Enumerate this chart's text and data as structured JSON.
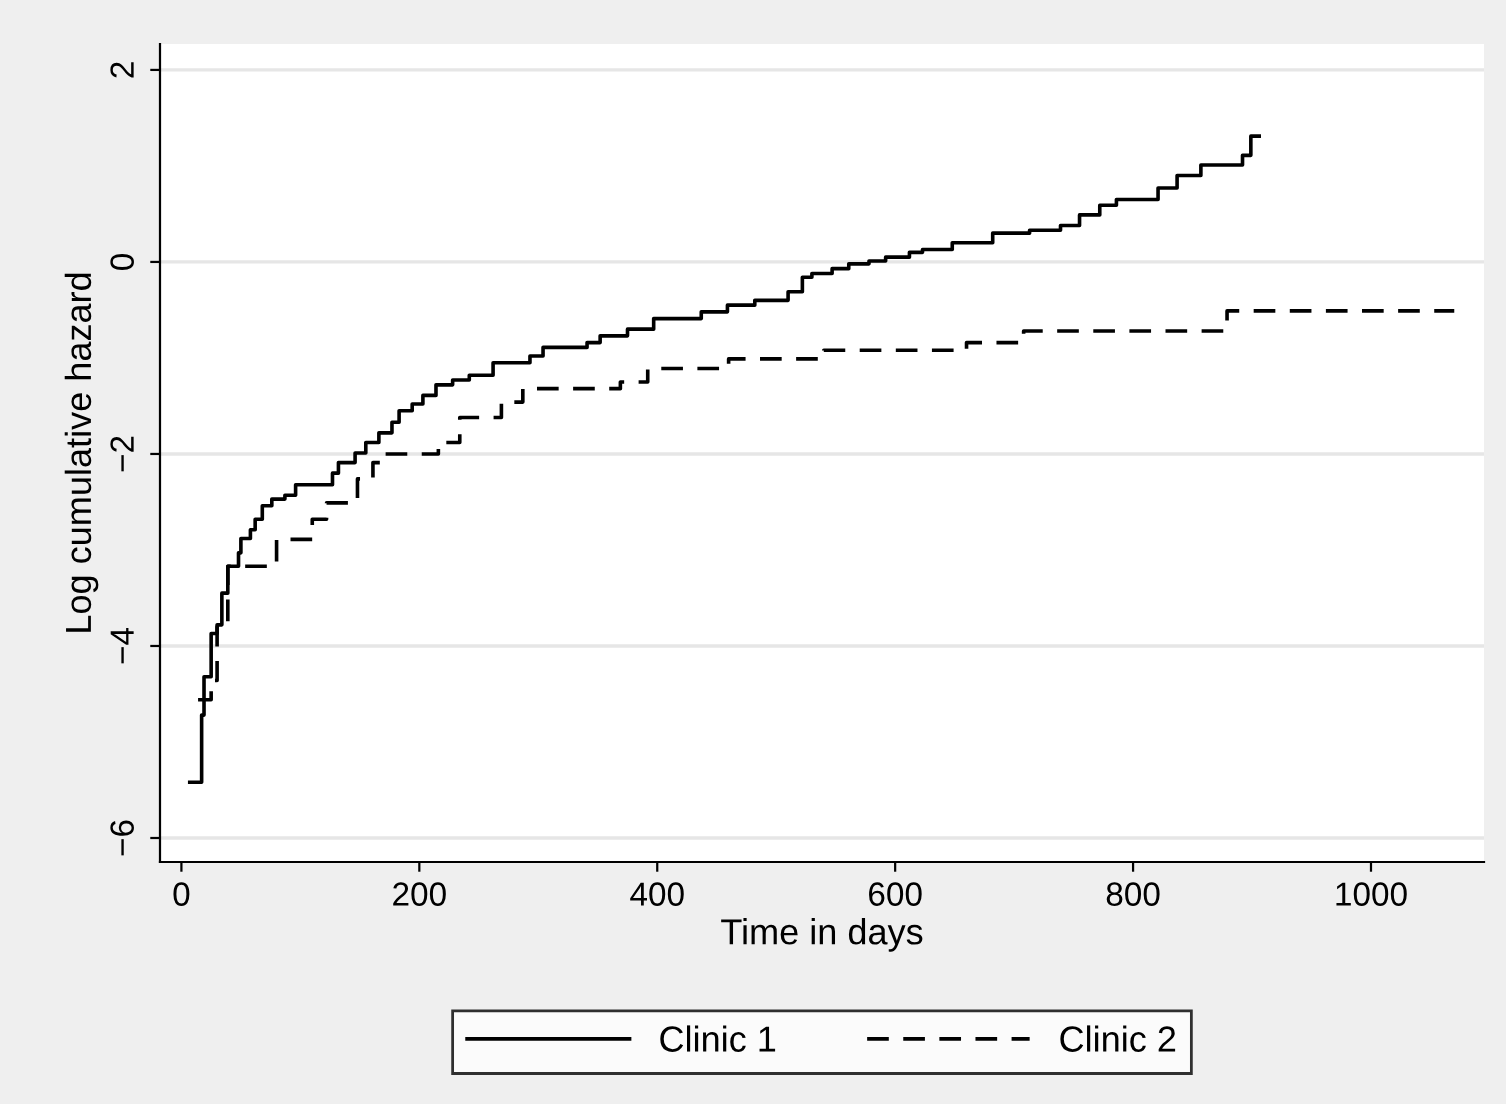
{
  "chart_data": {
    "type": "step",
    "xlabel": "Time in days",
    "ylabel": "Log cumulative hazard",
    "xlim": [
      -18,
      1095
    ],
    "ylim": [
      -6.25,
      2.27
    ],
    "xticks": [
      0,
      200,
      400,
      600,
      800,
      1000
    ],
    "yticks": [
      {
        "value": -6,
        "label": "−6"
      },
      {
        "value": -4,
        "label": "−4"
      },
      {
        "value": -2,
        "label": "−2"
      },
      0,
      2
    ],
    "grid": "y",
    "legend": "bottom",
    "series": [
      {
        "name": "Clinic 1",
        "color": "#000000",
        "line_style": "solid",
        "x": [
          7,
          17,
          19,
          25,
          30,
          34,
          39,
          48,
          50,
          58,
          62,
          68,
          76,
          87,
          96,
          127,
          132,
          146,
          155,
          166,
          177,
          183,
          194,
          203,
          214,
          228,
          242,
          262,
          293,
          304,
          341,
          352,
          375,
          397,
          437,
          459,
          482,
          510,
          522,
          530,
          547,
          561,
          578,
          592,
          612,
          623,
          648,
          682,
          713,
          739,
          755,
          772,
          786,
          821,
          837,
          857,
          892,
          899,
          906
        ],
        "values": [
          -5.42,
          -4.72,
          -4.32,
          -3.87,
          -3.78,
          -3.45,
          -3.17,
          -3.03,
          -2.88,
          -2.79,
          -2.68,
          -2.54,
          -2.47,
          -2.43,
          -2.32,
          -2.2,
          -2.09,
          -1.99,
          -1.88,
          -1.78,
          -1.67,
          -1.55,
          -1.48,
          -1.39,
          -1.28,
          -1.23,
          -1.18,
          -1.05,
          -0.98,
          -0.89,
          -0.84,
          -0.77,
          -0.7,
          -0.59,
          -0.52,
          -0.45,
          -0.4,
          -0.31,
          -0.16,
          -0.12,
          -0.07,
          -0.02,
          0.01,
          0.05,
          0.1,
          0.13,
          0.2,
          0.3,
          0.33,
          0.38,
          0.49,
          0.59,
          0.65,
          0.77,
          0.9,
          1.01,
          1.11,
          1.31,
          1.31
        ]
      },
      {
        "name": "Clinic 2",
        "color": "#000000",
        "line_style": "dashed",
        "x": [
          14,
          25,
          30,
          39,
          80,
          110,
          122,
          148,
          161,
          171,
          216,
          234,
          269,
          287,
          369,
          392,
          460,
          540,
          660,
          708,
          879,
          1070
        ],
        "values": [
          -4.56,
          -4.36,
          -3.8,
          -3.17,
          -2.89,
          -2.68,
          -2.51,
          -2.26,
          -2.09,
          -2.0,
          -1.88,
          -1.62,
          -1.46,
          -1.32,
          -1.25,
          -1.11,
          -1.01,
          -0.92,
          -0.84,
          -0.72,
          -0.51,
          -0.51
        ]
      }
    ]
  }
}
